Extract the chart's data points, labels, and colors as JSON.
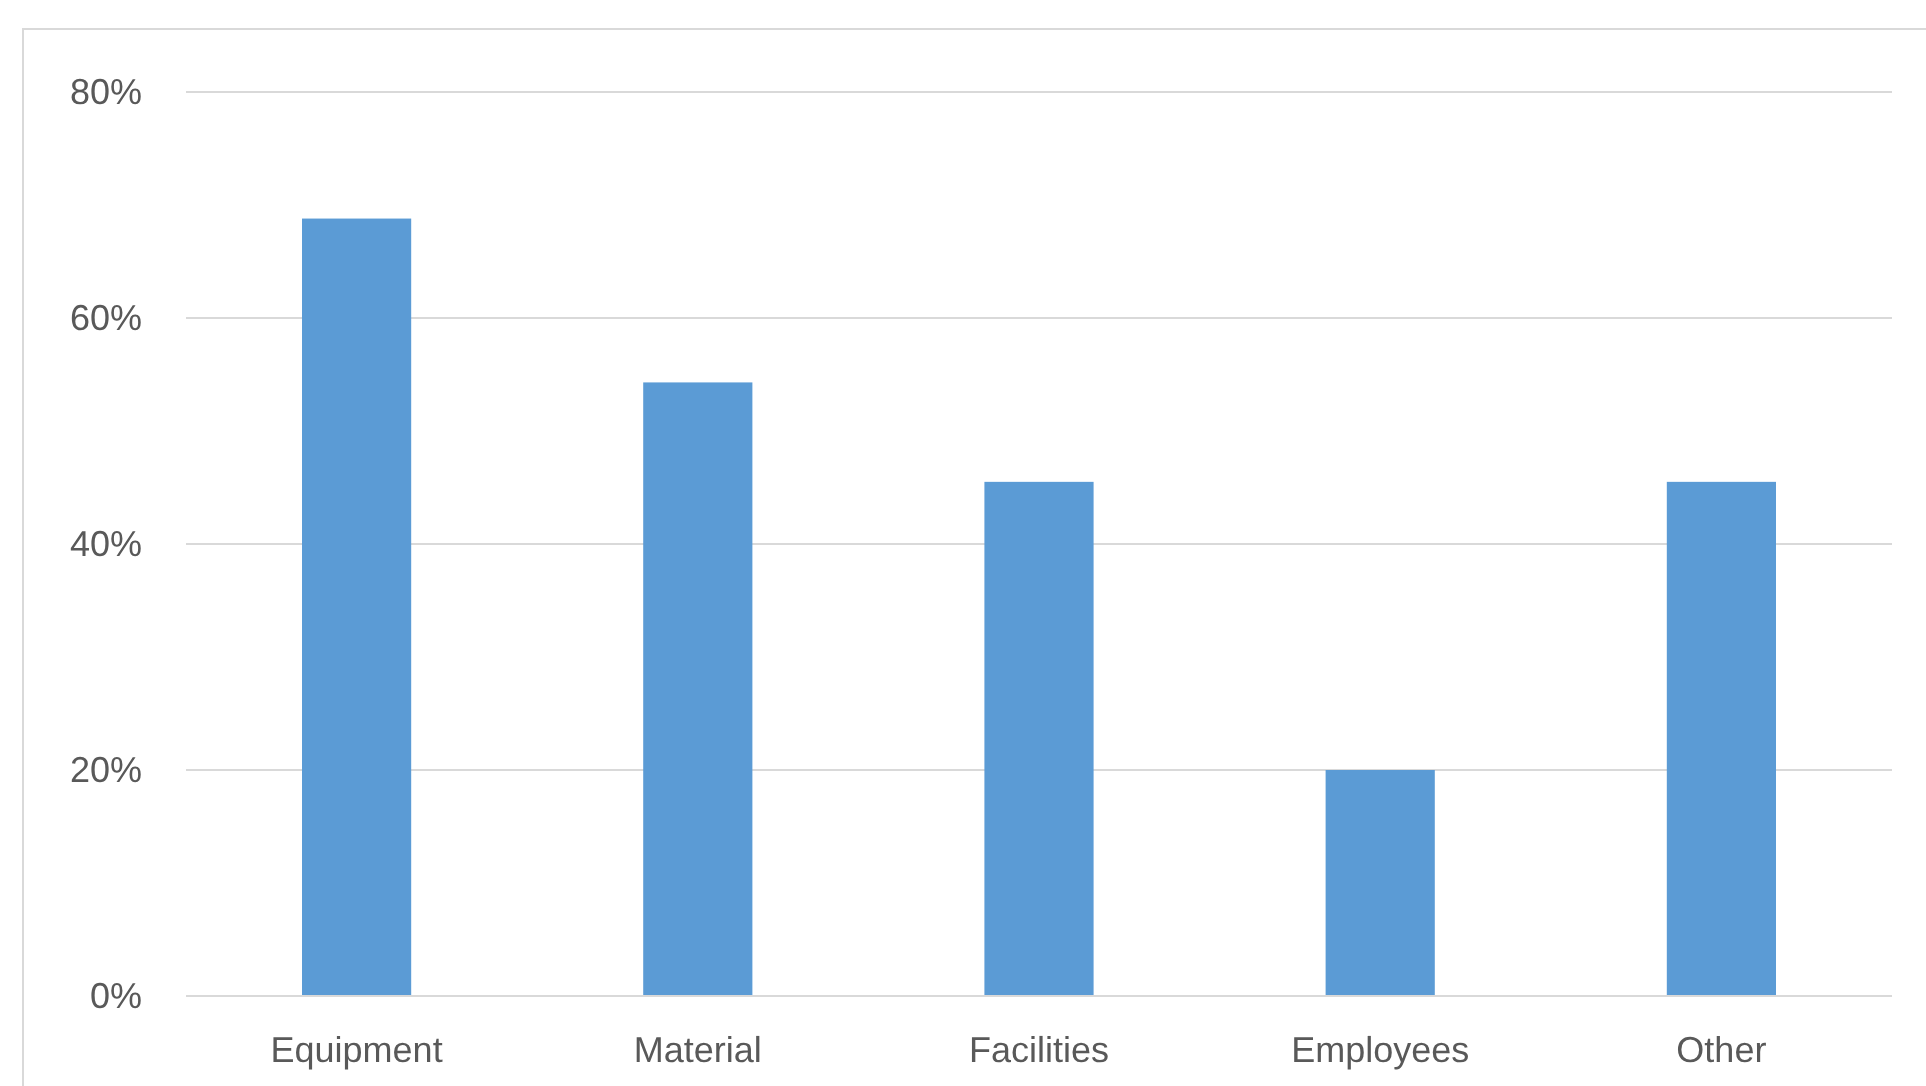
{
  "chart_data": {
    "type": "bar",
    "categories": [
      "Equipment",
      "Material",
      "Facilities",
      "Employees",
      "Other"
    ],
    "values": [
      68.8,
      54.3,
      45.5,
      20,
      45.5
    ],
    "color": "#5b9bd5",
    "ylim": [
      0,
      80
    ],
    "yticks": [
      {
        "value": 0,
        "label": "0%"
      },
      {
        "value": 20,
        "label": "20%"
      },
      {
        "value": 40,
        "label": "40%"
      },
      {
        "value": 60,
        "label": "60%"
      },
      {
        "value": 80,
        "label": "80%"
      }
    ],
    "grid": "y"
  }
}
